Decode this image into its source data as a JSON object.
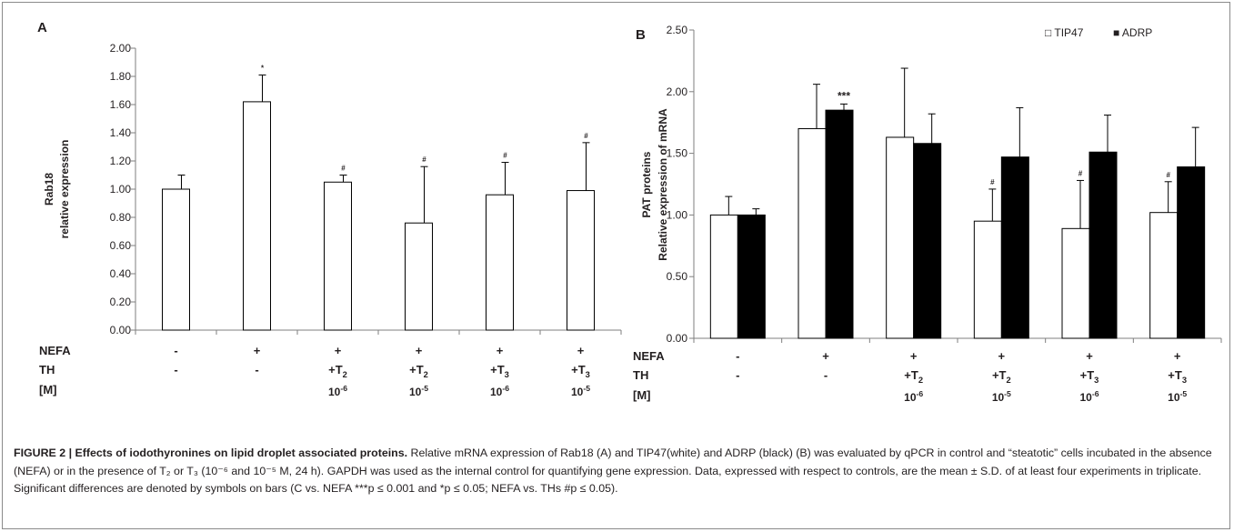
{
  "chart_data": [
    {
      "type": "bar",
      "panel_label": "A",
      "ylabel": [
        "Rab18",
        "relative expression"
      ],
      "ylim": [
        0,
        2.0
      ],
      "yticks": [
        "0.00",
        "0.20",
        "0.40",
        "0.60",
        "0.80",
        "1.00",
        "1.20",
        "1.40",
        "1.60",
        "1.80",
        "2.00"
      ],
      "legend": "none",
      "grid": false,
      "series": [
        {
          "values": [
            1.0,
            1.62,
            1.05,
            0.76,
            0.96,
            0.99
          ],
          "errors": [
            0.1,
            0.19,
            0.05,
            0.4,
            0.23,
            0.34
          ],
          "fill": "#ffffff",
          "annotations": [
            "",
            "*",
            "#",
            "#",
            "#",
            "#"
          ]
        }
      ],
      "row_labels": [
        "NEFA",
        "TH",
        "[M]"
      ],
      "nefa": [
        "-",
        "+",
        "+",
        "+",
        "+",
        "+"
      ],
      "th": [
        {
          "base": "-",
          "sub": ""
        },
        {
          "base": "-",
          "sub": ""
        },
        {
          "base": "+T",
          "sub": "2"
        },
        {
          "base": "+T",
          "sub": "2"
        },
        {
          "base": "+T",
          "sub": "3"
        },
        {
          "base": "+T",
          "sub": "3"
        }
      ],
      "conc": [
        {
          "base": "",
          "sup": ""
        },
        {
          "base": "",
          "sup": ""
        },
        {
          "base": "10",
          "sup": "-6"
        },
        {
          "base": "10",
          "sup": "-5"
        },
        {
          "base": "10",
          "sup": "-6"
        },
        {
          "base": "10",
          "sup": "-5"
        }
      ]
    },
    {
      "type": "bar",
      "panel_label": "B",
      "ylabel": [
        "PAT proteins",
        "Relative expression of mRNA"
      ],
      "ylim": [
        0,
        2.5
      ],
      "yticks": [
        "0.00",
        "0.50",
        "1.00",
        "1.50",
        "2.00",
        "2.50"
      ],
      "legend": "top-right",
      "grid": false,
      "series": [
        {
          "name": "TIP47",
          "values": [
            1.0,
            1.7,
            1.63,
            0.95,
            0.89,
            1.02
          ],
          "errors": [
            0.15,
            0.36,
            0.56,
            0.26,
            0.39,
            0.25
          ],
          "fill": "#ffffff",
          "annotations": [
            "",
            "",
            "",
            "#",
            "#",
            "#"
          ]
        },
        {
          "name": "ADRP",
          "values": [
            1.0,
            1.85,
            1.58,
            1.47,
            1.51,
            1.39
          ],
          "errors": [
            0.05,
            0.05,
            0.24,
            0.4,
            0.3,
            0.32
          ],
          "fill": "#000000",
          "annotations": [
            "",
            "***",
            "",
            "",
            "",
            ""
          ]
        }
      ],
      "legend_marks": [
        "□",
        "■"
      ],
      "row_labels": [
        "NEFA",
        "TH",
        "[M]"
      ],
      "nefa": [
        "-",
        "+",
        "+",
        "+",
        "+",
        "+"
      ],
      "th": [
        {
          "base": "-",
          "sub": ""
        },
        {
          "base": "-",
          "sub": ""
        },
        {
          "base": "+T",
          "sub": "2"
        },
        {
          "base": "+T",
          "sub": "2"
        },
        {
          "base": "+T",
          "sub": "3"
        },
        {
          "base": "+T",
          "sub": "3"
        }
      ],
      "conc": [
        {
          "base": "",
          "sup": ""
        },
        {
          "base": "",
          "sup": ""
        },
        {
          "base": "10",
          "sup": "-6"
        },
        {
          "base": "10",
          "sup": "-5"
        },
        {
          "base": "10",
          "sup": "-6"
        },
        {
          "base": "10",
          "sup": "-5"
        }
      ]
    }
  ],
  "caption": {
    "title": "FIGURE 2 | Effects of iodothyronines on lipid droplet associated proteins.",
    "body": " Relative mRNA expression of Rab18 (A) and TIP47(white) and ADRP (black) (B) was evaluated by qPCR in control and “steatotic” cells incubated in the absence (NEFA) or in the presence of T₂ or T₃ (10⁻⁶ and 10⁻⁵ M, 24 h). GAPDH was used as the internal control for quantifying gene expression. Data, expressed with respect to controls, are the mean ± S.D. of at least four experiments in triplicate. Significant differences are denoted by symbols on bars (C vs. NEFA ***p ≤ 0.001 and *p ≤ 0.05; NEFA vs. THs #p ≤ 0.05)."
  }
}
